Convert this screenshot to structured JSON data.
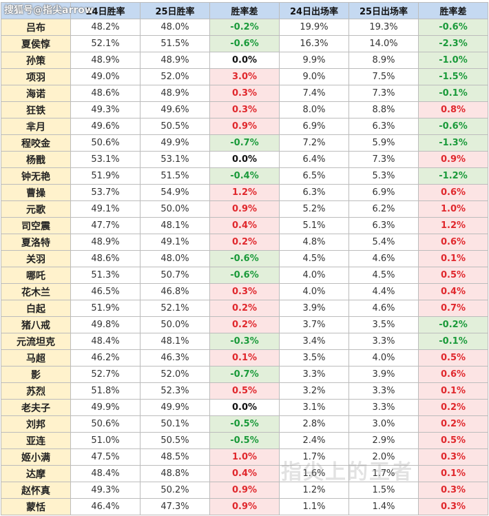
{
  "headers": [
    "24日胜率",
    "25日胜率",
    "胜率差",
    "24日出场率",
    "25日出场率",
    "胜率差"
  ],
  "watermark_top": "搜狐号@指尖arrow",
  "watermark_bottom": "指尖上的王者",
  "colors": {
    "header_bg": "#c5d9f1",
    "name_bg": "#fff2cc",
    "neg_bg": "#e2efda",
    "neg_text": "#1a9a3a",
    "pos_bg": "#fce4e4",
    "pos_text": "#e0282d"
  },
  "rows": [
    {
      "name": "吕布",
      "wr24": "48.2%",
      "wr25": "48.0%",
      "wrd": "-0.2%",
      "wrd_sign": "neg",
      "pr24": "19.9%",
      "pr25": "19.3%",
      "prd": "-0.6%",
      "prd_sign": "neg"
    },
    {
      "name": "夏侯惇",
      "wr24": "52.1%",
      "wr25": "51.5%",
      "wrd": "-0.6%",
      "wrd_sign": "neg",
      "pr24": "16.3%",
      "pr25": "14.0%",
      "prd": "-2.3%",
      "prd_sign": "neg"
    },
    {
      "name": "孙策",
      "wr24": "48.9%",
      "wr25": "48.9%",
      "wrd": "0.0%",
      "wrd_sign": "zero",
      "pr24": "9.9%",
      "pr25": "8.9%",
      "prd": "-1.0%",
      "prd_sign": "neg"
    },
    {
      "name": "项羽",
      "wr24": "49.0%",
      "wr25": "52.0%",
      "wrd": "3.0%",
      "wrd_sign": "pos",
      "pr24": "9.0%",
      "pr25": "7.5%",
      "prd": "-1.5%",
      "prd_sign": "neg"
    },
    {
      "name": "海诺",
      "wr24": "48.6%",
      "wr25": "48.9%",
      "wrd": "0.3%",
      "wrd_sign": "pos",
      "pr24": "7.4%",
      "pr25": "7.3%",
      "prd": "-0.1%",
      "prd_sign": "neg"
    },
    {
      "name": "狂铁",
      "wr24": "49.3%",
      "wr25": "49.6%",
      "wrd": "0.3%",
      "wrd_sign": "pos",
      "pr24": "8.0%",
      "pr25": "8.8%",
      "prd": "0.8%",
      "prd_sign": "pos"
    },
    {
      "name": "芈月",
      "wr24": "49.6%",
      "wr25": "50.5%",
      "wrd": "0.9%",
      "wrd_sign": "pos",
      "pr24": "6.9%",
      "pr25": "6.3%",
      "prd": "-0.6%",
      "prd_sign": "neg"
    },
    {
      "name": "程咬金",
      "wr24": "50.6%",
      "wr25": "49.9%",
      "wrd": "-0.7%",
      "wrd_sign": "neg",
      "pr24": "7.2%",
      "pr25": "5.9%",
      "prd": "-1.3%",
      "prd_sign": "neg"
    },
    {
      "name": "杨戬",
      "wr24": "53.1%",
      "wr25": "53.1%",
      "wrd": "0.0%",
      "wrd_sign": "zero",
      "pr24": "6.4%",
      "pr25": "7.3%",
      "prd": "0.9%",
      "prd_sign": "pos"
    },
    {
      "name": "钟无艳",
      "wr24": "51.9%",
      "wr25": "51.5%",
      "wrd": "-0.4%",
      "wrd_sign": "neg",
      "pr24": "6.5%",
      "pr25": "5.3%",
      "prd": "-1.2%",
      "prd_sign": "neg"
    },
    {
      "name": "曹操",
      "wr24": "53.7%",
      "wr25": "54.9%",
      "wrd": "1.2%",
      "wrd_sign": "pos",
      "pr24": "6.3%",
      "pr25": "6.9%",
      "prd": "0.6%",
      "prd_sign": "pos"
    },
    {
      "name": "元歌",
      "wr24": "49.1%",
      "wr25": "50.0%",
      "wrd": "0.9%",
      "wrd_sign": "pos",
      "pr24": "5.2%",
      "pr25": "6.2%",
      "prd": "1.0%",
      "prd_sign": "pos"
    },
    {
      "name": "司空震",
      "wr24": "47.7%",
      "wr25": "48.1%",
      "wrd": "0.4%",
      "wrd_sign": "pos",
      "pr24": "5.1%",
      "pr25": "6.3%",
      "prd": "1.2%",
      "prd_sign": "pos"
    },
    {
      "name": "夏洛特",
      "wr24": "48.9%",
      "wr25": "49.1%",
      "wrd": "0.2%",
      "wrd_sign": "pos",
      "pr24": "4.8%",
      "pr25": "5.4%",
      "prd": "0.6%",
      "prd_sign": "pos"
    },
    {
      "name": "关羽",
      "wr24": "48.6%",
      "wr25": "48.0%",
      "wrd": "-0.6%",
      "wrd_sign": "neg",
      "pr24": "4.5%",
      "pr25": "4.6%",
      "prd": "0.1%",
      "prd_sign": "pos"
    },
    {
      "name": "哪吒",
      "wr24": "51.3%",
      "wr25": "50.7%",
      "wrd": "-0.6%",
      "wrd_sign": "neg",
      "pr24": "4.0%",
      "pr25": "4.5%",
      "prd": "0.5%",
      "prd_sign": "pos"
    },
    {
      "name": "花木兰",
      "wr24": "46.5%",
      "wr25": "46.8%",
      "wrd": "0.3%",
      "wrd_sign": "pos",
      "pr24": "4.0%",
      "pr25": "4.4%",
      "prd": "0.4%",
      "prd_sign": "pos"
    },
    {
      "name": "白起",
      "wr24": "51.9%",
      "wr25": "52.1%",
      "wrd": "0.2%",
      "wrd_sign": "pos",
      "pr24": "3.9%",
      "pr25": "4.6%",
      "prd": "0.7%",
      "prd_sign": "pos"
    },
    {
      "name": "猪八戒",
      "wr24": "49.8%",
      "wr25": "50.0%",
      "wrd": "0.2%",
      "wrd_sign": "pos",
      "pr24": "3.7%",
      "pr25": "3.5%",
      "prd": "-0.2%",
      "prd_sign": "neg"
    },
    {
      "name": "元流坦克",
      "wr24": "48.4%",
      "wr25": "48.1%",
      "wrd": "-0.3%",
      "wrd_sign": "neg",
      "pr24": "3.4%",
      "pr25": "3.3%",
      "prd": "-0.1%",
      "prd_sign": "neg"
    },
    {
      "name": "马超",
      "wr24": "46.2%",
      "wr25": "46.3%",
      "wrd": "0.1%",
      "wrd_sign": "pos",
      "pr24": "3.5%",
      "pr25": "4.0%",
      "prd": "0.5%",
      "prd_sign": "pos"
    },
    {
      "name": "影",
      "wr24": "52.7%",
      "wr25": "52.0%",
      "wrd": "-0.7%",
      "wrd_sign": "neg",
      "pr24": "3.3%",
      "pr25": "3.9%",
      "prd": "0.6%",
      "prd_sign": "pos"
    },
    {
      "name": "苏烈",
      "wr24": "51.8%",
      "wr25": "52.3%",
      "wrd": "0.5%",
      "wrd_sign": "pos",
      "pr24": "3.2%",
      "pr25": "3.3%",
      "prd": "0.1%",
      "prd_sign": "pos"
    },
    {
      "name": "老夫子",
      "wr24": "49.9%",
      "wr25": "49.9%",
      "wrd": "0.0%",
      "wrd_sign": "zero",
      "pr24": "3.1%",
      "pr25": "3.3%",
      "prd": "0.2%",
      "prd_sign": "pos"
    },
    {
      "name": "刘邦",
      "wr24": "50.6%",
      "wr25": "50.1%",
      "wrd": "-0.5%",
      "wrd_sign": "neg",
      "pr24": "2.8%",
      "pr25": "3.0%",
      "prd": "0.2%",
      "prd_sign": "pos"
    },
    {
      "name": "亚连",
      "wr24": "51.0%",
      "wr25": "50.5%",
      "wrd": "-0.5%",
      "wrd_sign": "neg",
      "pr24": "2.4%",
      "pr25": "2.9%",
      "prd": "0.5%",
      "prd_sign": "pos"
    },
    {
      "name": "姬小满",
      "wr24": "47.5%",
      "wr25": "48.5%",
      "wrd": "1.0%",
      "wrd_sign": "pos",
      "pr24": "1.7%",
      "pr25": "2.0%",
      "prd": "0.3%",
      "prd_sign": "pos"
    },
    {
      "name": "达摩",
      "wr24": "48.4%",
      "wr25": "48.8%",
      "wrd": "0.4%",
      "wrd_sign": "pos",
      "pr24": "1.6%",
      "pr25": "1.7%",
      "prd": "0.1%",
      "prd_sign": "pos"
    },
    {
      "name": "赵怀真",
      "wr24": "49.3%",
      "wr25": "50.2%",
      "wrd": "0.9%",
      "wrd_sign": "pos",
      "pr24": "1.2%",
      "pr25": "1.5%",
      "prd": "0.3%",
      "prd_sign": "pos"
    },
    {
      "name": "蒙恬",
      "wr24": "46.4%",
      "wr25": "47.3%",
      "wrd": "0.9%",
      "wrd_sign": "pos",
      "pr24": "1.1%",
      "pr25": "1.4%",
      "prd": "0.3%",
      "prd_sign": "pos"
    }
  ]
}
